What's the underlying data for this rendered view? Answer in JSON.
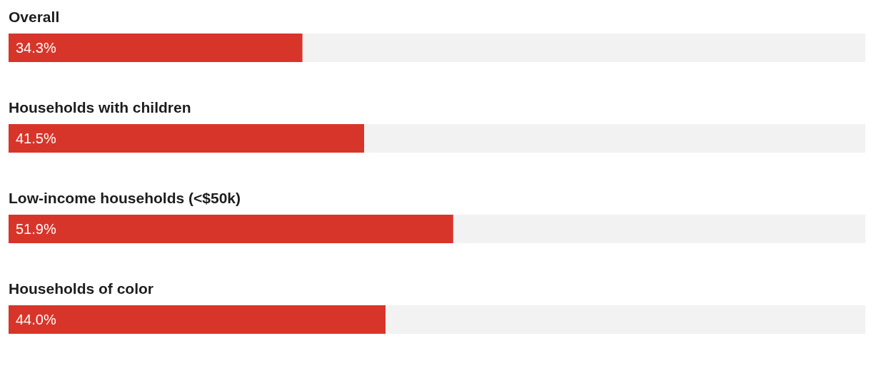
{
  "chart_data": {
    "type": "bar",
    "orientation": "horizontal",
    "categories": [
      "Overall",
      "Households with children",
      "Low-income households (<$50k)",
      "Households of color"
    ],
    "values": [
      34.3,
      41.5,
      51.9,
      44.0
    ],
    "color": "#d8352a",
    "value_labels": [
      "34.3%",
      "41.5%",
      "51.9%",
      "44.0%"
    ],
    "xlim": [
      0,
      100
    ],
    "tick_labels": false
  }
}
